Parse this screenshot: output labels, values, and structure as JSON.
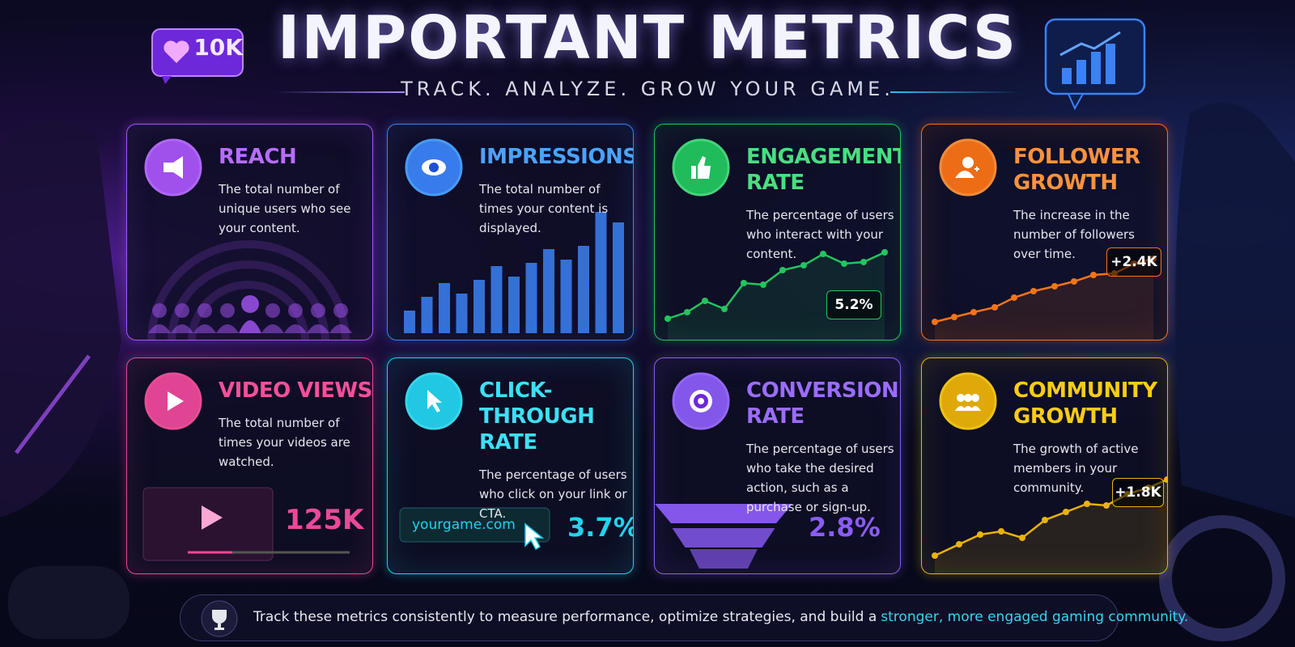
{
  "header": {
    "badge": "10K",
    "title": "IMPORTANT METRICS",
    "subtitle": "TRACK. ANALYZE. GROW YOUR GAME."
  },
  "cards": [
    {
      "title": "REACH",
      "description": "The total number of unique users who see your content."
    },
    {
      "title": "IMPRESSIONS",
      "description": "The total number of times your content is displayed."
    },
    {
      "title": "ENGAGEMENT RATE",
      "description": "The percentage of users who interact with your content.",
      "stat": "5.2%"
    },
    {
      "title": "FOLLOWER GROWTH",
      "description": "The increase in the number of followers over time.",
      "stat": "+2.4K"
    },
    {
      "title": "VIDEO VIEWS",
      "description": "The total number of times your videos are watched.",
      "stat": "125K"
    },
    {
      "title": "CLICK-THROUGH RATE",
      "description": "The percentage of users who click on your link or CTA.",
      "link": "yourgame.com",
      "stat": "3.7%"
    },
    {
      "title": "CONVERSION RATE",
      "description": "The percentage of users who take the desired action, such as a purchase or sign-up.",
      "stat": "2.8%"
    },
    {
      "title": "COMMUNITY GROWTH",
      "description": "The growth of active members in your community.",
      "stat": "+1.8K"
    }
  ],
  "footer": {
    "text": "Track these metrics consistently to measure performance, optimize strategies, and build a",
    "highlight": "stronger, more engaged gaming community."
  }
}
